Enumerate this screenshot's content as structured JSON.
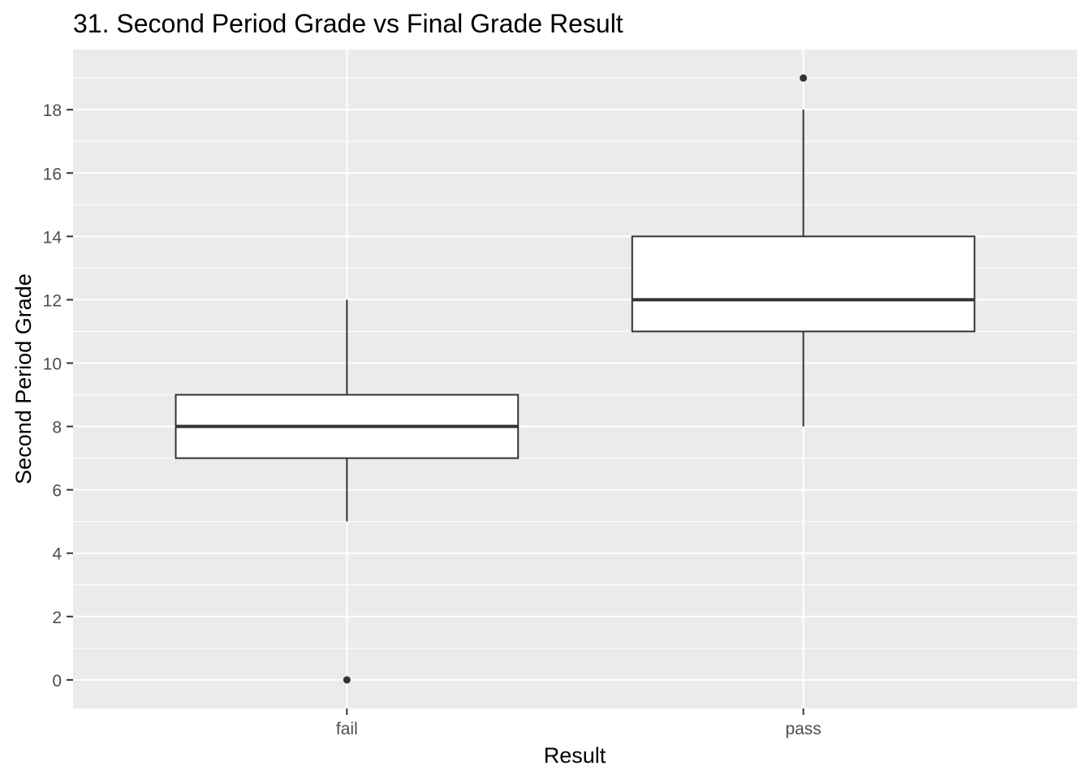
{
  "chart_data": {
    "type": "boxplot",
    "title": "31. Second Period Grade vs Final Grade Result",
    "xlabel": "Result",
    "ylabel": "Second Period Grade",
    "categories": [
      "fail",
      "pass"
    ],
    "ylim": [
      -0.9,
      19.9
    ],
    "yticks": [
      0,
      2,
      4,
      6,
      8,
      10,
      12,
      14,
      16,
      18
    ],
    "ytick_labels": [
      "0",
      "2",
      "4",
      "6",
      "8",
      "10",
      "12",
      "14",
      "16",
      "18"
    ],
    "grid": true,
    "legend": "none",
    "boxes": [
      {
        "category": "fail",
        "whisker_low": 5,
        "q1": 7,
        "median": 8,
        "q3": 9,
        "whisker_high": 12,
        "outliers": [
          0
        ]
      },
      {
        "category": "pass",
        "whisker_low": 8,
        "q1": 11,
        "median": 12,
        "q3": 14,
        "whisker_high": 18,
        "outliers": [
          19
        ]
      }
    ],
    "colors": {
      "panel_background": "#ebebeb",
      "gridline": "#ffffff",
      "box_fill": "#ffffff",
      "box_stroke": "#333333",
      "point": "#333333",
      "tick_text": "#4d4d4d",
      "title_text": "#000000"
    }
  }
}
